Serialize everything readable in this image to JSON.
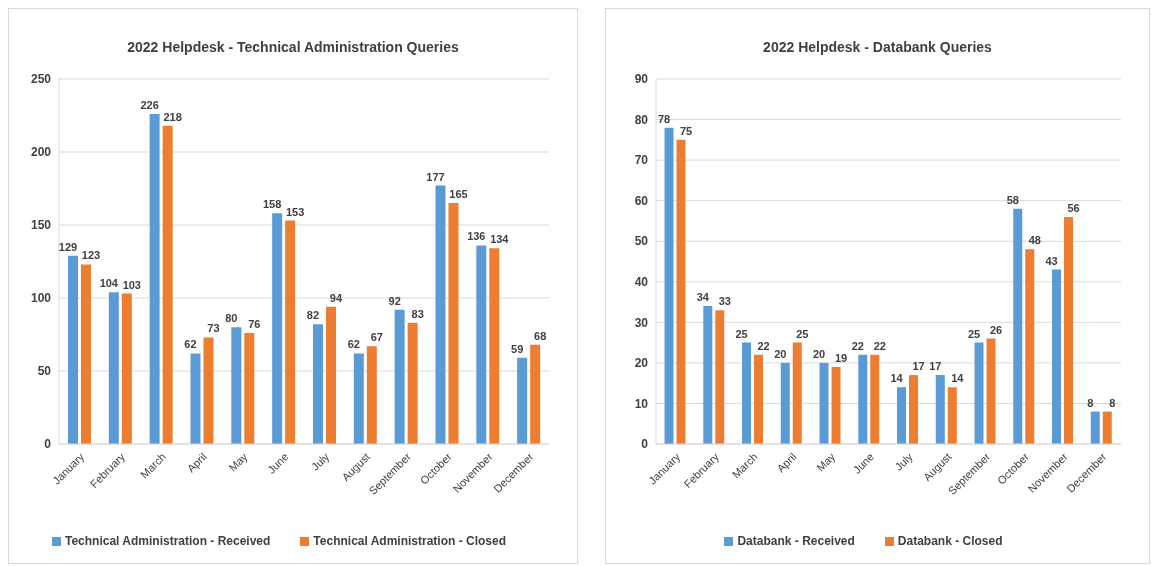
{
  "chart_data": [
    {
      "type": "bar",
      "title": "2022 Helpdesk - Technical Administration Queries",
      "categories": [
        "January",
        "February",
        "March",
        "April",
        "May",
        "June",
        "July",
        "August",
        "September",
        "October",
        "November",
        "December"
      ],
      "series": [
        {
          "name": "Technical Administration - Received",
          "color": "#5b9bd5",
          "values": [
            129,
            104,
            226,
            62,
            80,
            158,
            82,
            62,
            92,
            177,
            136,
            59
          ]
        },
        {
          "name": "Technical Administration - Closed",
          "color": "#ed7d31",
          "values": [
            123,
            103,
            218,
            73,
            76,
            153,
            94,
            67,
            83,
            165,
            134,
            68
          ]
        }
      ],
      "ylim": [
        0,
        250
      ],
      "yticks": [
        0,
        50,
        100,
        150,
        200,
        250
      ],
      "grid": "y",
      "legend": "bottom",
      "data_labels": true
    },
    {
      "type": "bar",
      "title": "2022 Helpdesk - Databank Queries",
      "categories": [
        "January",
        "February",
        "March",
        "April",
        "May",
        "June",
        "July",
        "August",
        "September",
        "October",
        "November",
        "December"
      ],
      "series": [
        {
          "name": "Databank - Received",
          "color": "#5b9bd5",
          "values": [
            78,
            34,
            25,
            20,
            20,
            22,
            14,
            17,
            25,
            58,
            43,
            8
          ]
        },
        {
          "name": "Databank - Closed",
          "color": "#ed7d31",
          "values": [
            75,
            33,
            22,
            25,
            19,
            22,
            17,
            14,
            26,
            48,
            56,
            8
          ]
        }
      ],
      "ylim": [
        0,
        90
      ],
      "yticks": [
        0,
        10,
        20,
        30,
        40,
        50,
        60,
        70,
        80,
        90
      ],
      "grid": "y",
      "legend": "bottom",
      "data_labels": true
    }
  ]
}
